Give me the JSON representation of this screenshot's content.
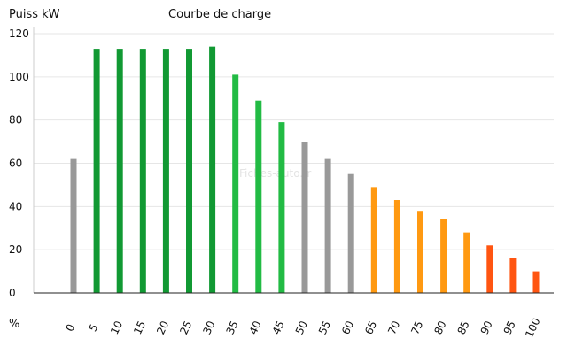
{
  "chart_data": {
    "type": "bar",
    "title": "Courbe de charge",
    "ylabel": "Puiss kW",
    "xlabel": "%",
    "watermark": "Fiches-auto.fr",
    "categories": [
      "0",
      "5",
      "10",
      "15",
      "20",
      "25",
      "30",
      "35",
      "40",
      "45",
      "50",
      "55",
      "60",
      "65",
      "70",
      "75",
      "80",
      "85",
      "90",
      "95",
      "100"
    ],
    "values": [
      62,
      113,
      113,
      113,
      113,
      113,
      114,
      101,
      89,
      79,
      70,
      62,
      55,
      49,
      43,
      38,
      34,
      28,
      22,
      16,
      10
    ],
    "bar_colors": [
      "#999999",
      "#119933",
      "#119933",
      "#119933",
      "#119933",
      "#119933",
      "#119933",
      "#22bb44",
      "#22bb44",
      "#22bb44",
      "#999999",
      "#999999",
      "#999999",
      "#ff9911",
      "#ff9911",
      "#ff9911",
      "#ff9911",
      "#ff9911",
      "#ff5511",
      "#ff5511",
      "#ff5511"
    ],
    "ylim": [
      0,
      120
    ],
    "yticks": [
      0,
      20,
      40,
      60,
      80,
      100,
      120
    ],
    "grid": true,
    "legend": "none"
  }
}
